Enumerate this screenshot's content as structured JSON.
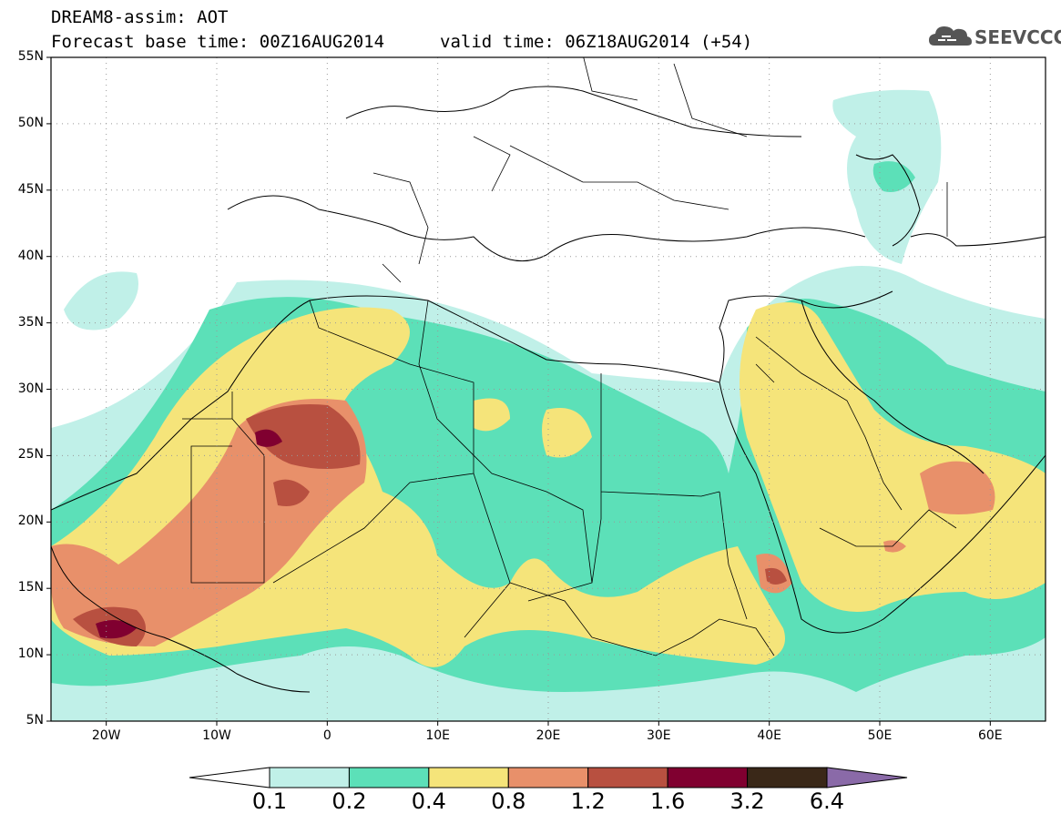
{
  "title": {
    "line1": "DREAM8-assim: AOT",
    "line2_left": "Forecast base time: 00Z16AUG2014",
    "line2_right": "valid time: 06Z18AUG2014 (+54)"
  },
  "logo": {
    "text": "SEEVCCC",
    "icon": "cloud-icon"
  },
  "map": {
    "lon_range": [
      -25,
      65
    ],
    "lat_range": [
      5,
      55
    ],
    "lat_labels": [
      "55N",
      "50N",
      "45N",
      "40N",
      "35N",
      "30N",
      "25N",
      "20N",
      "15N",
      "10N",
      "5N"
    ],
    "lon_labels": [
      "20W",
      "10W",
      "0",
      "10E",
      "20E",
      "30E",
      "40E",
      "50E",
      "60E"
    ],
    "grid": "dotted"
  },
  "colorbar": {
    "labels": [
      "0.1",
      "0.2",
      "0.4",
      "0.8",
      "1.2",
      "1.6",
      "3.2",
      "6.4"
    ],
    "colors": [
      "#ffffff",
      "#c0f0e8",
      "#5ce0b8",
      "#f5e47a",
      "#e8906a",
      "#b85040",
      "#800030",
      "#3a2818",
      "#8a6aa8"
    ]
  }
}
